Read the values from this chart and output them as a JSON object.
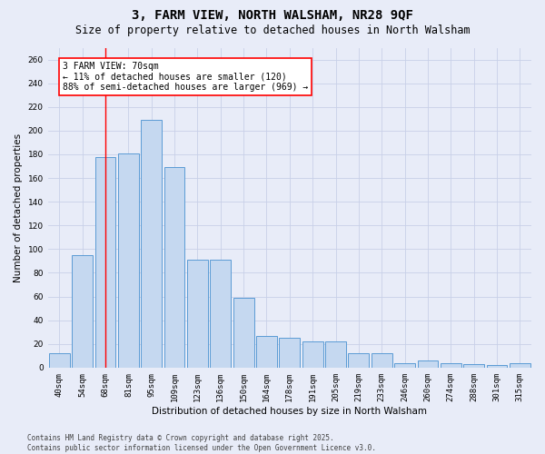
{
  "title1": "3, FARM VIEW, NORTH WALSHAM, NR28 9QF",
  "title2": "Size of property relative to detached houses in North Walsham",
  "xlabel": "Distribution of detached houses by size in North Walsham",
  "ylabel": "Number of detached properties",
  "categories": [
    "40sqm",
    "54sqm",
    "68sqm",
    "81sqm",
    "95sqm",
    "109sqm",
    "123sqm",
    "136sqm",
    "150sqm",
    "164sqm",
    "178sqm",
    "191sqm",
    "205sqm",
    "219sqm",
    "233sqm",
    "246sqm",
    "260sqm",
    "274sqm",
    "288sqm",
    "301sqm",
    "315sqm"
  ],
  "values": [
    12,
    95,
    178,
    181,
    209,
    169,
    91,
    91,
    59,
    27,
    25,
    22,
    22,
    12,
    12,
    4,
    6,
    4,
    3,
    2,
    4
  ],
  "bar_color": "#c5d8f0",
  "bar_edge_color": "#5b9bd5",
  "grid_color": "#c8d0e8",
  "bg_color": "#e8ecf8",
  "vline_x": 2.0,
  "ylim": [
    0,
    270
  ],
  "yticks": [
    0,
    20,
    40,
    60,
    80,
    100,
    120,
    140,
    160,
    180,
    200,
    220,
    240,
    260
  ],
  "annotation_text": "3 FARM VIEW: 70sqm\n← 11% of detached houses are smaller (120)\n88% of semi-detached houses are larger (969) →",
  "footer1": "Contains HM Land Registry data © Crown copyright and database right 2025.",
  "footer2": "Contains public sector information licensed under the Open Government Licence v3.0.",
  "title1_fontsize": 10,
  "title2_fontsize": 8.5,
  "axis_label_fontsize": 7.5,
  "tick_fontsize": 6.5,
  "annotation_fontsize": 7,
  "footer_fontsize": 5.5
}
